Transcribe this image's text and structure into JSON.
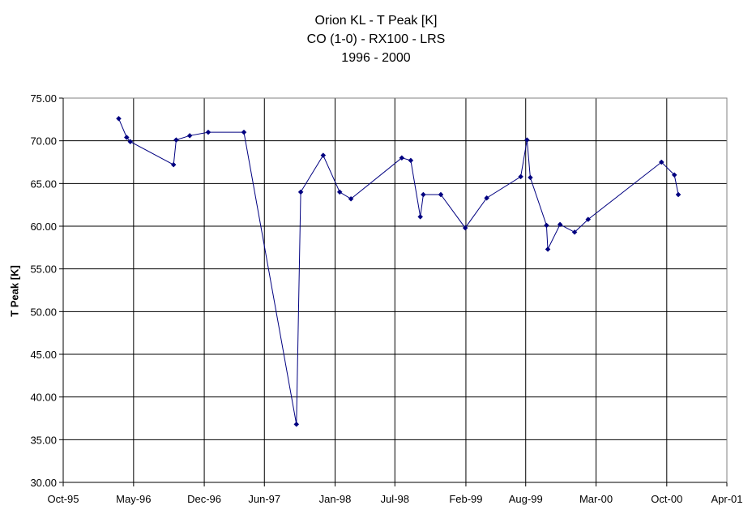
{
  "chart_data": {
    "type": "line",
    "title": [
      "Orion KL - T Peak [K]",
      "CO (1-0) - RX100 - LRS",
      "1996 - 2000"
    ],
    "xlabel": "",
    "ylabel": "T Peak [K]",
    "ylim": [
      30.0,
      75.0
    ],
    "xlim": [
      "1995-10-01",
      "2001-04-01"
    ],
    "y_ticks": [
      "30.00",
      "35.00",
      "40.00",
      "45.00",
      "50.00",
      "55.00",
      "60.00",
      "65.00",
      "70.00",
      "75.00"
    ],
    "x_ticks": [
      {
        "date": "1995-10-01",
        "label": "Oct-95"
      },
      {
        "date": "1996-05-01",
        "label": "May-96"
      },
      {
        "date": "1996-12-01",
        "label": "Dec-96"
      },
      {
        "date": "1997-06-01",
        "label": "Jun-97"
      },
      {
        "date": "1998-01-01",
        "label": "Jan-98"
      },
      {
        "date": "1998-07-01",
        "label": "Jul-98"
      },
      {
        "date": "1999-02-01",
        "label": "Feb-99"
      },
      {
        "date": "1999-08-01",
        "label": "Aug-99"
      },
      {
        "date": "2000-03-01",
        "label": "Mar-00"
      },
      {
        "date": "2000-10-01",
        "label": "Oct-00"
      },
      {
        "date": "2001-04-01",
        "label": "Apr-01"
      }
    ],
    "grid": true,
    "legend": "none",
    "colors": {
      "line": "#000080",
      "marker": "#000080",
      "grid": "#000000"
    },
    "series": [
      {
        "x": [
          "1996-03-17",
          "1996-04-10",
          "1996-04-21",
          "1996-08-30",
          "1996-09-07",
          "1996-10-18",
          "1996-12-13",
          "1997-03-31",
          "1997-09-06",
          "1997-09-19",
          "1997-11-26",
          "1998-01-15",
          "1998-02-18",
          "1998-07-22",
          "1998-08-18",
          "1998-09-16",
          "1998-09-25",
          "1998-11-17",
          "1999-01-30",
          "1999-04-05",
          "1999-07-17",
          "1999-08-05",
          "1999-08-15",
          "1999-10-03",
          "1999-10-07",
          "1999-11-13",
          "1999-12-27",
          "2000-02-06",
          "2000-09-15",
          "2000-10-24",
          "2000-11-05"
        ],
        "values": [
          72.6,
          70.4,
          69.9,
          67.2,
          70.1,
          70.6,
          71.0,
          71.0,
          36.8,
          64.0,
          68.3,
          64.0,
          63.2,
          68.0,
          67.7,
          61.1,
          63.7,
          63.7,
          59.8,
          63.3,
          65.8,
          70.1,
          65.7,
          60.1,
          57.3,
          60.2,
          59.3,
          60.8,
          67.5,
          66.0,
          63.7
        ]
      }
    ]
  }
}
